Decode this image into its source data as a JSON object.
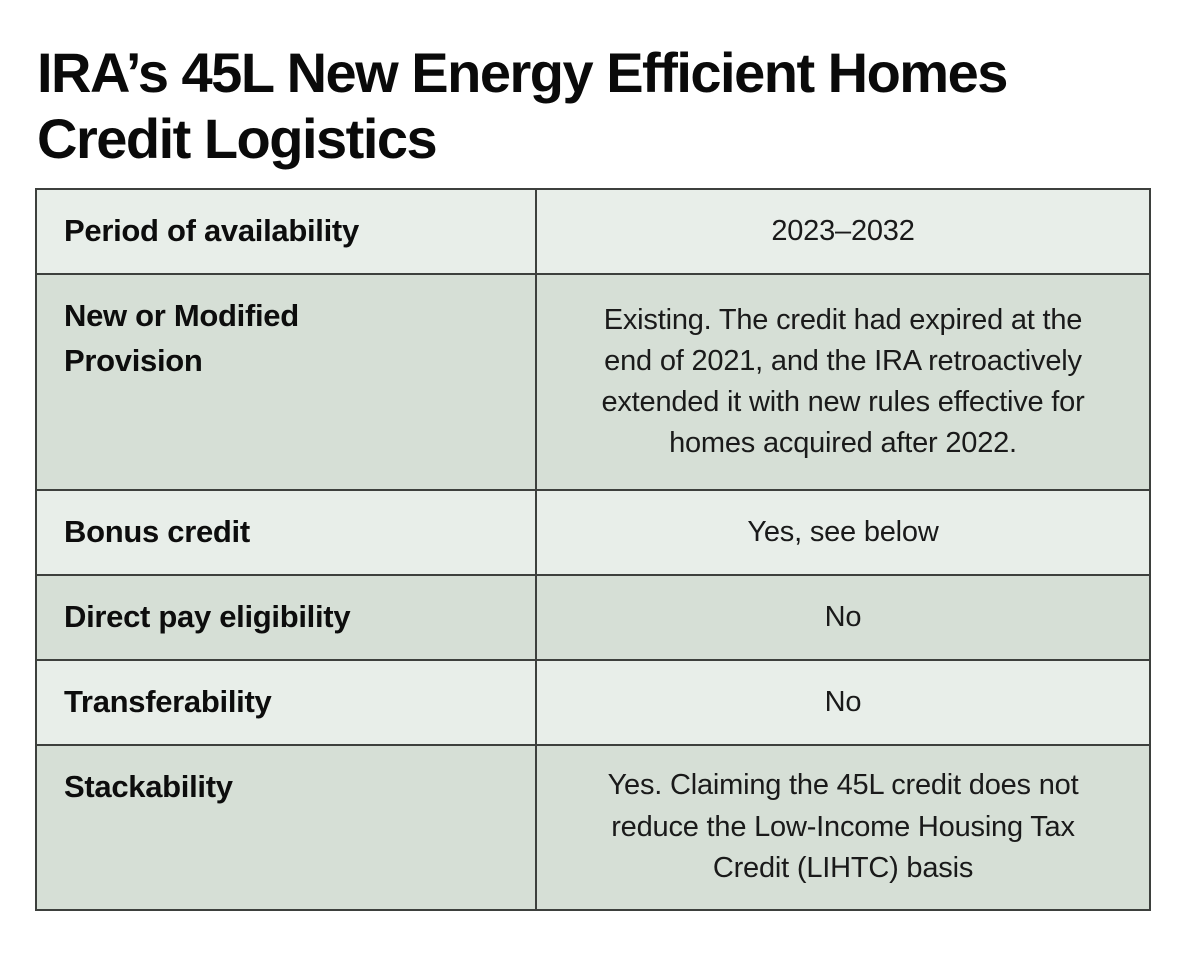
{
  "page": {
    "title": "IRA’s 45L New Energy Efficient Homes Credit Logistics"
  },
  "table": {
    "rows": [
      {
        "label": "Period of availability",
        "value": "2023–2032"
      },
      {
        "label": "New or Modified\nProvision",
        "value": "Existing. The credit had expired at the\nend of 2021, and the IRA retroactively\nextended it with new rules effective for\nhomes acquired after 2022."
      },
      {
        "label": "Bonus credit",
        "value": "Yes, see below"
      },
      {
        "label": "Direct pay eligibility",
        "value": "No"
      },
      {
        "label": "Transferability",
        "value": "No"
      },
      {
        "label": "Stackability",
        "value": "Yes. Claiming the 45L credit does not\nreduce the Low-Income Housing Tax\nCredit (LIHTC) basis"
      }
    ]
  },
  "colors": {
    "row_light": "#e8eee9",
    "row_dark": "#d6dfd6",
    "border": "#3d403d",
    "text": "#111111",
    "background": "#ffffff"
  }
}
